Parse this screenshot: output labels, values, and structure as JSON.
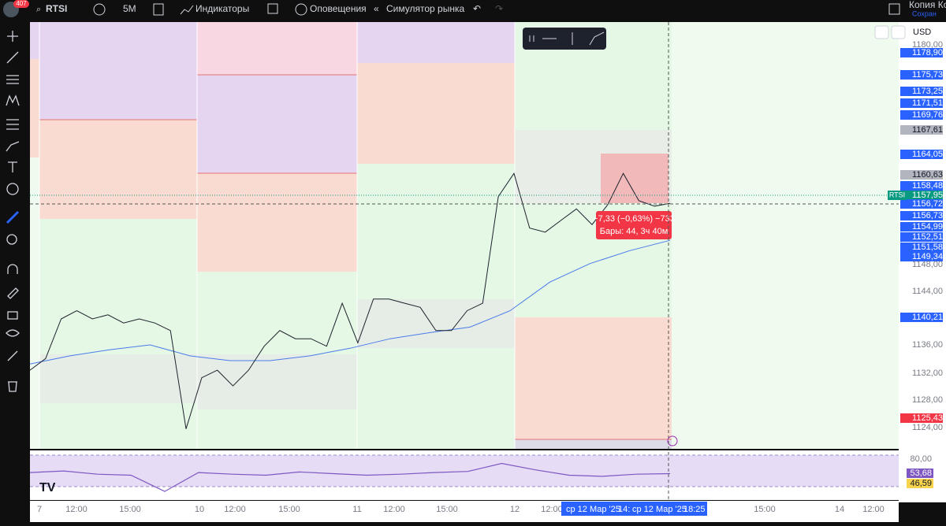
{
  "header": {
    "badge": "407",
    "symbol": "RTSI",
    "interval": "5M",
    "indicators": "Индикаторы",
    "alerts": "Оповещения",
    "replay": "Симулятор рынка",
    "layout_name": "Копия Ко",
    "layout_status": "Сохран"
  },
  "price_scale": {
    "currency": "USD",
    "ylim": [
      1120.89,
      1183.34
    ],
    "labels": [
      {
        "text": "1180,00"
      },
      {
        "text": "1178,90",
        "background": "#2962ff"
      },
      {
        "text": "1175,73",
        "background": "#2962ff"
      },
      {
        "text": "1173,25",
        "background": "#2962ff"
      },
      {
        "text": "1171,51",
        "background": "#2962ff"
      },
      {
        "text": "1169,76",
        "background": "#2962ff"
      },
      {
        "text": "1167,61",
        "background": "#b2b5be"
      },
      {
        "text": "1164,05",
        "background": "#2962ff"
      },
      {
        "text": "1160,63",
        "background": "#b2b5be"
      },
      {
        "text": "1158,48",
        "background": "#2962ff"
      },
      {
        "text": "1157,95",
        "background": "#089981"
      },
      {
        "text": "1156,72",
        "background": "#2962ff"
      },
      {
        "text": "1156,73",
        "background": "#2962ff"
      },
      {
        "text": "1154,99",
        "background": "#2962ff"
      },
      {
        "text": "1152,51",
        "background": "#2962ff"
      },
      {
        "text": "1151,58",
        "background": "#2962ff"
      },
      {
        "text": "1149,34",
        "background": "#2962ff"
      },
      {
        "text": "1148,00"
      },
      {
        "text": "1144,00"
      },
      {
        "text": "1140,21",
        "background": "#2962ff"
      },
      {
        "text": "1136,00"
      },
      {
        "text": "1132,00"
      },
      {
        "text": "1128,00"
      },
      {
        "text": "1125,43",
        "background": "#f23645"
      },
      {
        "text": "1124,00"
      }
    ]
  },
  "chart": {
    "symbol_tag": "RTSI",
    "measure": {
      "line1": "−7,33 (−0,63%) −733",
      "line2": "Бары: 44, 3ч 40м"
    },
    "price_line": {
      "color": "#1e222d",
      "values": [
        1132.4,
        1134.1,
        1139.9,
        1141.1,
        1139.9,
        1140.5,
        1139.3,
        1139.9,
        1139.3,
        1138.2,
        1123.8,
        1131.3,
        1132.4,
        1130.1,
        1132.4,
        1135.9,
        1138.2,
        1137.0,
        1137.0,
        1135.9,
        1142.2,
        1136.4,
        1142.8,
        1142.8,
        1142.2,
        1141.6,
        1138.2,
        1138.2,
        1141.1,
        1142.2,
        1157.8,
        1161.2,
        1153.2,
        1152.6,
        1154.3,
        1156.0,
        1153.7,
        1156.6,
        1161.2,
        1157.2,
        1156.4,
        1156.8
      ]
    },
    "ma_line": {
      "color": "#4a7bec",
      "values": [
        1133.3,
        1134.5,
        1135.4,
        1136.1,
        1134.5,
        1133.8,
        1133.8,
        1134.5,
        1135.6,
        1137.0,
        1137.9,
        1138.7,
        1141.1,
        1145.3,
        1148.0,
        1149.9,
        1151.4
      ]
    }
  },
  "rsi": {
    "ylim": [
      4.0,
      96.1
    ],
    "color": "#7e57c2",
    "values": [
      55,
      58,
      52,
      50,
      20,
      55,
      52,
      50,
      56,
      53,
      50,
      52,
      55,
      57,
      72,
      60,
      50,
      48,
      52,
      53
    ],
    "labels": [
      {
        "text": "80,00"
      },
      {
        "text": "53,68",
        "background": "#7e57c2"
      },
      {
        "text": "46,59",
        "background": "#f7d44c"
      }
    ]
  },
  "time_axis": {
    "labels": [
      "7",
      "12:00",
      "15:00",
      "10",
      "12:00",
      "15:00",
      "11",
      "12:00",
      "15:00",
      "12",
      "12:00",
      "15:00",
      "14",
      "12:00"
    ],
    "range_start": "ср 12 Мар '25",
    "range_start_time": "14:",
    "range_end": "ср 12 Мар '25",
    "range_end_time": "18:25"
  }
}
